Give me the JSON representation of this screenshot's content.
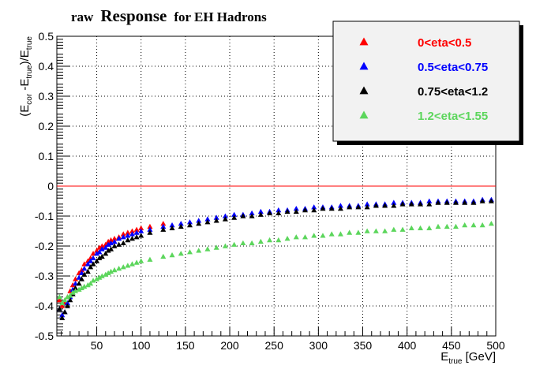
{
  "chart_data": {
    "type": "scatter",
    "title_prefix": "raw",
    "title_main": "Response",
    "title_suffix": "for EH Hadrons",
    "xlabel": {
      "main": "E",
      "sub": "true",
      "rest": " [GeV]"
    },
    "ylabel": {
      "p1": "(E",
      "s1": "cor",
      "p2": " -E",
      "s2": "true",
      "p3": ")/E",
      "s3": "true"
    },
    "xlim": [
      5,
      500
    ],
    "ylim": [
      -0.5,
      0.5
    ],
    "xticks": [
      50,
      100,
      150,
      200,
      250,
      300,
      350,
      400,
      450,
      500
    ],
    "yticks": [
      "-0.5",
      "-0.4",
      "-0.3",
      "-0.2",
      "-0.1",
      "0",
      "0.1",
      "0.2",
      "0.3",
      "0.4",
      "0.5"
    ],
    "grid": true,
    "reference_line": {
      "y": 0,
      "color": "#ff0000"
    },
    "legend_position": "top-right",
    "series": [
      {
        "name": "0<eta<0.5",
        "color": "#ff0000",
        "points": [
          [
            8,
            -0.38
          ],
          [
            11,
            -0.4
          ],
          [
            14,
            -0.39
          ],
          [
            17,
            -0.37
          ],
          [
            20,
            -0.35
          ],
          [
            23,
            -0.33
          ],
          [
            26,
            -0.31
          ],
          [
            30,
            -0.29
          ],
          [
            33,
            -0.28
          ],
          [
            36,
            -0.26
          ],
          [
            40,
            -0.25
          ],
          [
            43,
            -0.24
          ],
          [
            46,
            -0.225
          ],
          [
            50,
            -0.215
          ],
          [
            53,
            -0.205
          ],
          [
            56,
            -0.2
          ],
          [
            60,
            -0.195
          ],
          [
            63,
            -0.185
          ],
          [
            66,
            -0.18
          ],
          [
            70,
            -0.175
          ],
          [
            75,
            -0.17
          ],
          [
            80,
            -0.16
          ],
          [
            85,
            -0.155
          ],
          [
            90,
            -0.15
          ],
          [
            95,
            -0.145
          ],
          [
            100,
            -0.14
          ],
          [
            110,
            -0.135
          ],
          [
            125,
            -0.125
          ]
        ]
      },
      {
        "name": "0.5<eta<0.75",
        "color": "#0000ff",
        "points": [
          [
            8,
            -0.41
          ],
          [
            11,
            -0.43
          ],
          [
            14,
            -0.42
          ],
          [
            17,
            -0.39
          ],
          [
            20,
            -0.37
          ],
          [
            23,
            -0.345
          ],
          [
            26,
            -0.325
          ],
          [
            30,
            -0.305
          ],
          [
            33,
            -0.29
          ],
          [
            36,
            -0.275
          ],
          [
            40,
            -0.26
          ],
          [
            43,
            -0.25
          ],
          [
            46,
            -0.24
          ],
          [
            50,
            -0.225
          ],
          [
            53,
            -0.22
          ],
          [
            56,
            -0.21
          ],
          [
            60,
            -0.205
          ],
          [
            63,
            -0.195
          ],
          [
            66,
            -0.19
          ],
          [
            70,
            -0.185
          ],
          [
            75,
            -0.175
          ],
          [
            80,
            -0.17
          ],
          [
            85,
            -0.165
          ],
          [
            90,
            -0.16
          ],
          [
            95,
            -0.155
          ],
          [
            100,
            -0.15
          ],
          [
            110,
            -0.145
          ],
          [
            125,
            -0.135
          ],
          [
            135,
            -0.13
          ],
          [
            145,
            -0.125
          ],
          [
            155,
            -0.12
          ],
          [
            165,
            -0.115
          ],
          [
            175,
            -0.11
          ],
          [
            185,
            -0.105
          ],
          [
            195,
            -0.1
          ],
          [
            205,
            -0.095
          ],
          [
            215,
            -0.095
          ],
          [
            225,
            -0.09
          ],
          [
            235,
            -0.085
          ],
          [
            245,
            -0.085
          ],
          [
            255,
            -0.08
          ],
          [
            265,
            -0.08
          ],
          [
            275,
            -0.075
          ],
          [
            285,
            -0.075
          ],
          [
            295,
            -0.07
          ],
          [
            305,
            -0.07
          ],
          [
            315,
            -0.07
          ],
          [
            325,
            -0.065
          ],
          [
            335,
            -0.065
          ],
          [
            345,
            -0.065
          ],
          [
            355,
            -0.06
          ],
          [
            365,
            -0.06
          ],
          [
            375,
            -0.06
          ],
          [
            385,
            -0.055
          ],
          [
            395,
            -0.055
          ],
          [
            405,
            -0.055
          ],
          [
            415,
            -0.055
          ],
          [
            425,
            -0.05
          ],
          [
            435,
            -0.05
          ],
          [
            445,
            -0.05
          ],
          [
            455,
            -0.05
          ],
          [
            465,
            -0.05
          ],
          [
            475,
            -0.05
          ],
          [
            485,
            -0.045
          ],
          [
            495,
            -0.045
          ]
        ]
      },
      {
        "name": "0.75<eta<1.2",
        "color": "#000000",
        "points": [
          [
            8,
            -0.41
          ],
          [
            11,
            -0.44
          ],
          [
            14,
            -0.42
          ],
          [
            17,
            -0.4
          ],
          [
            20,
            -0.38
          ],
          [
            23,
            -0.36
          ],
          [
            26,
            -0.34
          ],
          [
            30,
            -0.325
          ],
          [
            33,
            -0.31
          ],
          [
            36,
            -0.295
          ],
          [
            40,
            -0.285
          ],
          [
            43,
            -0.27
          ],
          [
            46,
            -0.26
          ],
          [
            50,
            -0.25
          ],
          [
            53,
            -0.24
          ],
          [
            56,
            -0.235
          ],
          [
            60,
            -0.225
          ],
          [
            63,
            -0.215
          ],
          [
            66,
            -0.21
          ],
          [
            70,
            -0.2
          ],
          [
            75,
            -0.195
          ],
          [
            80,
            -0.19
          ],
          [
            85,
            -0.18
          ],
          [
            90,
            -0.175
          ],
          [
            95,
            -0.17
          ],
          [
            100,
            -0.165
          ],
          [
            110,
            -0.155
          ],
          [
            125,
            -0.145
          ],
          [
            135,
            -0.14
          ],
          [
            145,
            -0.135
          ],
          [
            155,
            -0.13
          ],
          [
            165,
            -0.125
          ],
          [
            175,
            -0.12
          ],
          [
            185,
            -0.115
          ],
          [
            195,
            -0.11
          ],
          [
            205,
            -0.105
          ],
          [
            215,
            -0.1
          ],
          [
            225,
            -0.1
          ],
          [
            235,
            -0.095
          ],
          [
            245,
            -0.09
          ],
          [
            255,
            -0.09
          ],
          [
            265,
            -0.085
          ],
          [
            275,
            -0.085
          ],
          [
            285,
            -0.08
          ],
          [
            295,
            -0.08
          ],
          [
            305,
            -0.075
          ],
          [
            315,
            -0.075
          ],
          [
            325,
            -0.075
          ],
          [
            335,
            -0.07
          ],
          [
            345,
            -0.07
          ],
          [
            355,
            -0.07
          ],
          [
            365,
            -0.065
          ],
          [
            375,
            -0.065
          ],
          [
            385,
            -0.065
          ],
          [
            395,
            -0.06
          ],
          [
            405,
            -0.06
          ],
          [
            415,
            -0.06
          ],
          [
            425,
            -0.06
          ],
          [
            435,
            -0.055
          ],
          [
            445,
            -0.055
          ],
          [
            455,
            -0.055
          ],
          [
            465,
            -0.055
          ],
          [
            475,
            -0.055
          ],
          [
            485,
            -0.05
          ],
          [
            495,
            -0.05
          ]
        ]
      },
      {
        "name": "1.2<eta<1.55",
        "color": "#5cd65c",
        "points": [
          [
            8,
            -0.37
          ],
          [
            11,
            -0.39
          ],
          [
            14,
            -0.38
          ],
          [
            17,
            -0.37
          ],
          [
            20,
            -0.365
          ],
          [
            23,
            -0.355
          ],
          [
            26,
            -0.35
          ],
          [
            30,
            -0.345
          ],
          [
            33,
            -0.34
          ],
          [
            36,
            -0.335
          ],
          [
            40,
            -0.33
          ],
          [
            43,
            -0.325
          ],
          [
            46,
            -0.315
          ],
          [
            50,
            -0.31
          ],
          [
            53,
            -0.305
          ],
          [
            56,
            -0.3
          ],
          [
            60,
            -0.295
          ],
          [
            63,
            -0.29
          ],
          [
            66,
            -0.285
          ],
          [
            70,
            -0.28
          ],
          [
            75,
            -0.275
          ],
          [
            80,
            -0.27
          ],
          [
            85,
            -0.265
          ],
          [
            90,
            -0.26
          ],
          [
            95,
            -0.255
          ],
          [
            100,
            -0.25
          ],
          [
            110,
            -0.245
          ],
          [
            125,
            -0.235
          ],
          [
            135,
            -0.23
          ],
          [
            145,
            -0.225
          ],
          [
            155,
            -0.22
          ],
          [
            165,
            -0.215
          ],
          [
            175,
            -0.21
          ],
          [
            185,
            -0.205
          ],
          [
            195,
            -0.2
          ],
          [
            205,
            -0.195
          ],
          [
            215,
            -0.19
          ],
          [
            225,
            -0.19
          ],
          [
            235,
            -0.185
          ],
          [
            245,
            -0.18
          ],
          [
            255,
            -0.18
          ],
          [
            265,
            -0.175
          ],
          [
            275,
            -0.17
          ],
          [
            285,
            -0.17
          ],
          [
            295,
            -0.165
          ],
          [
            305,
            -0.165
          ],
          [
            315,
            -0.16
          ],
          [
            325,
            -0.16
          ],
          [
            335,
            -0.155
          ],
          [
            345,
            -0.155
          ],
          [
            355,
            -0.15
          ],
          [
            365,
            -0.15
          ],
          [
            375,
            -0.15
          ],
          [
            385,
            -0.145
          ],
          [
            395,
            -0.145
          ],
          [
            405,
            -0.14
          ],
          [
            415,
            -0.14
          ],
          [
            425,
            -0.14
          ],
          [
            435,
            -0.135
          ],
          [
            445,
            -0.135
          ],
          [
            455,
            -0.135
          ],
          [
            465,
            -0.13
          ],
          [
            475,
            -0.13
          ],
          [
            485,
            -0.13
          ],
          [
            495,
            -0.125
          ]
        ]
      }
    ]
  }
}
